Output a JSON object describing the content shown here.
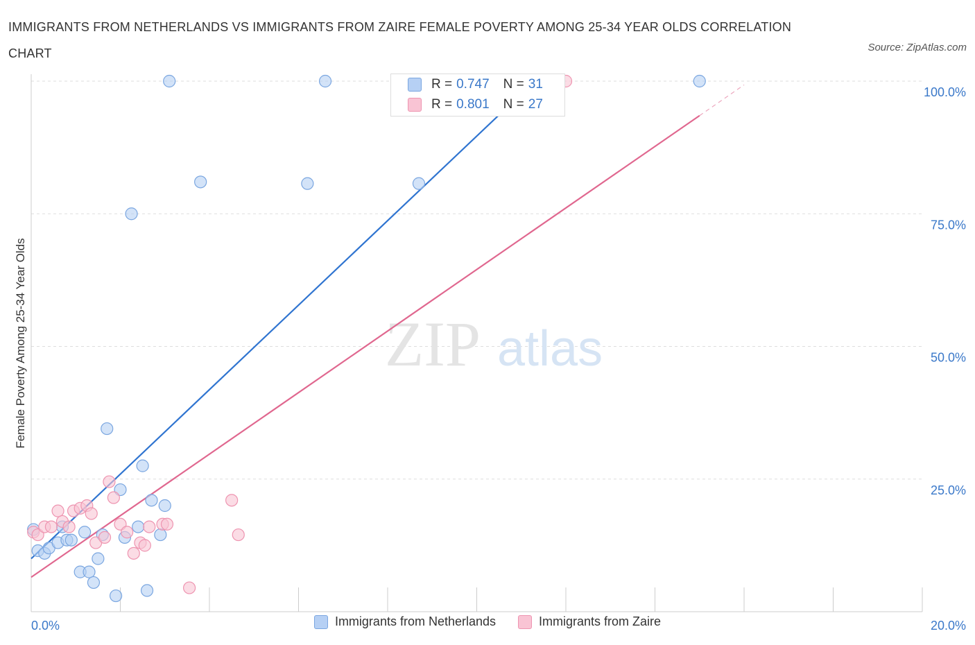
{
  "title": "IMMIGRANTS FROM NETHERLANDS VS IMMIGRANTS FROM ZAIRE FEMALE POVERTY AMONG 25-34 YEAR OLDS CORRELATION CHART",
  "source": "Source: ZipAtlas.com",
  "watermark": {
    "zip": "ZIP",
    "atlas": "atlas"
  },
  "stats_box": {
    "r_label": "R =",
    "n_label": "N =",
    "rows": [
      {
        "r": "0.747",
        "n": "31",
        "color": "#b6d0f4",
        "border": "#7aa6e0"
      },
      {
        "r": "0.801",
        "n": "27",
        "color": "#f9c4d4",
        "border": "#ee94b0"
      }
    ]
  },
  "chart_data": {
    "type": "scatter",
    "title": "IMMIGRANTS FROM NETHERLANDS VS IMMIGRANTS FROM ZAIRE FEMALE POVERTY AMONG 25-34 YEAR OLDS CORRELATION CHART",
    "xlabel": "",
    "ylabel": "Female Poverty Among 25-34 Year Olds",
    "xlim": [
      0,
      20
    ],
    "ylim": [
      0,
      100
    ],
    "x_tick_labels": [
      "0.0%",
      "20.0%"
    ],
    "y_ticks": [
      25,
      50,
      75,
      100
    ],
    "y_tick_labels": [
      "25.0%",
      "50.0%",
      "75.0%",
      "100.0%"
    ],
    "grid": true,
    "legend_position": "bottom",
    "series": [
      {
        "name": "Immigrants from Netherlands",
        "color": "#7aa6e0",
        "fill": "#b6d0f4",
        "line_color": "#2f74d0",
        "trend": {
          "x0": 0,
          "y0": 10,
          "x1": 11.3,
          "y1": 100,
          "dash_to_x": 11.4
        },
        "points": [
          [
            0.05,
            15.5
          ],
          [
            0.15,
            11.5
          ],
          [
            0.3,
            11.0
          ],
          [
            0.4,
            12.0
          ],
          [
            0.6,
            13.0
          ],
          [
            0.7,
            16.0
          ],
          [
            0.8,
            13.5
          ],
          [
            0.9,
            13.5
          ],
          [
            1.1,
            7.5
          ],
          [
            1.2,
            15.0
          ],
          [
            1.3,
            7.5
          ],
          [
            1.4,
            5.5
          ],
          [
            1.5,
            10.0
          ],
          [
            1.6,
            14.5
          ],
          [
            1.7,
            34.5
          ],
          [
            1.9,
            3.0
          ],
          [
            2.0,
            23.0
          ],
          [
            2.1,
            14.0
          ],
          [
            2.25,
            75.0
          ],
          [
            2.4,
            16.0
          ],
          [
            2.5,
            27.5
          ],
          [
            2.6,
            4.0
          ],
          [
            2.7,
            21.0
          ],
          [
            2.9,
            14.5
          ],
          [
            3.0,
            20.0
          ],
          [
            3.1,
            100.0
          ],
          [
            3.8,
            81.0
          ],
          [
            6.2,
            80.7
          ],
          [
            6.6,
            100.0
          ],
          [
            8.7,
            80.7
          ],
          [
            15.0,
            100.0
          ]
        ]
      },
      {
        "name": "Immigrants from Zaire",
        "color": "#ee94b0",
        "fill": "#f9c4d4",
        "line_color": "#e0678f",
        "trend": {
          "x0": 0,
          "y0": 6.5,
          "x1": 15.0,
          "y1": 93.5,
          "dash_to_x": 16.0
        },
        "points": [
          [
            0.05,
            15.0
          ],
          [
            0.15,
            14.5
          ],
          [
            0.3,
            16.0
          ],
          [
            0.45,
            16.0
          ],
          [
            0.6,
            19.0
          ],
          [
            0.7,
            17.0
          ],
          [
            0.85,
            16.0
          ],
          [
            0.95,
            19.0
          ],
          [
            1.1,
            19.5
          ],
          [
            1.25,
            20.0
          ],
          [
            1.35,
            18.5
          ],
          [
            1.45,
            13.0
          ],
          [
            1.65,
            14.0
          ],
          [
            1.75,
            24.5
          ],
          [
            1.85,
            21.5
          ],
          [
            2.0,
            16.5
          ],
          [
            2.15,
            15.0
          ],
          [
            2.3,
            11.0
          ],
          [
            2.45,
            13.0
          ],
          [
            2.55,
            12.5
          ],
          [
            2.65,
            16.0
          ],
          [
            2.95,
            16.5
          ],
          [
            3.05,
            16.5
          ],
          [
            3.55,
            4.5
          ],
          [
            4.5,
            21.0
          ],
          [
            4.65,
            14.5
          ],
          [
            12.0,
            100.0
          ]
        ]
      }
    ]
  }
}
